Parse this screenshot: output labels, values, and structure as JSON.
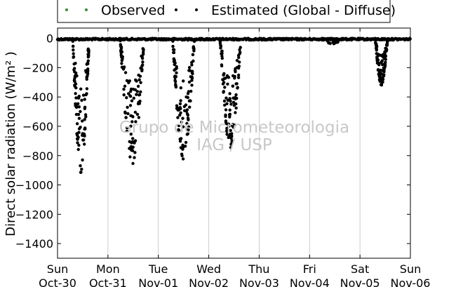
{
  "chart_data": {
    "type": "scatter",
    "title": "",
    "xlabel": "",
    "ylabel": "Direct solar radiation (W/m² )",
    "ylim": [
      -1500,
      70
    ],
    "xlim": [
      0,
      7
    ],
    "grid": "vertical",
    "legend_position": "top",
    "y_ticks": [
      0,
      -200,
      -400,
      -600,
      -800,
      -1000,
      -1200,
      -1400
    ],
    "y_tick_labels": [
      "0",
      "−200",
      "−400",
      "−600",
      "−800",
      "−1000",
      "−1200",
      "−1400"
    ],
    "x_ticks": [
      {
        "day": "Sun",
        "date": "Oct-30"
      },
      {
        "day": "Mon",
        "date": "Oct-31"
      },
      {
        "day": "Tue",
        "date": "Nov-01"
      },
      {
        "day": "Wed",
        "date": "Nov-02"
      },
      {
        "day": "Thu",
        "date": "Nov-03"
      },
      {
        "day": "Fri",
        "date": "Nov-04"
      },
      {
        "day": "Sat",
        "date": "Nov-05"
      },
      {
        "day": "Sun",
        "date": "Nov-06"
      }
    ],
    "series": [
      {
        "name": "Observed",
        "color": "#3a8a3a",
        "points": []
      },
      {
        "name": "Estimated (Global - Diffuse)",
        "color": "#000000",
        "daytime_dips": [
          {
            "start": 0.3,
            "end": 0.63,
            "min": -920
          },
          {
            "start": 1.24,
            "end": 1.72,
            "min": -870
          },
          {
            "start": 2.28,
            "end": 2.72,
            "min": -830
          },
          {
            "start": 3.22,
            "end": 3.64,
            "min": -760
          },
          {
            "start": 4.35,
            "end": 4.65,
            "min": -10
          },
          {
            "start": 5.25,
            "end": 5.65,
            "min": -40
          },
          {
            "start": 6.3,
            "end": 6.55,
            "min": -320
          }
        ]
      }
    ]
  },
  "watermark": {
    "line1": "Grupo de Micrometeorologia",
    "line2": "IAG / USP"
  }
}
